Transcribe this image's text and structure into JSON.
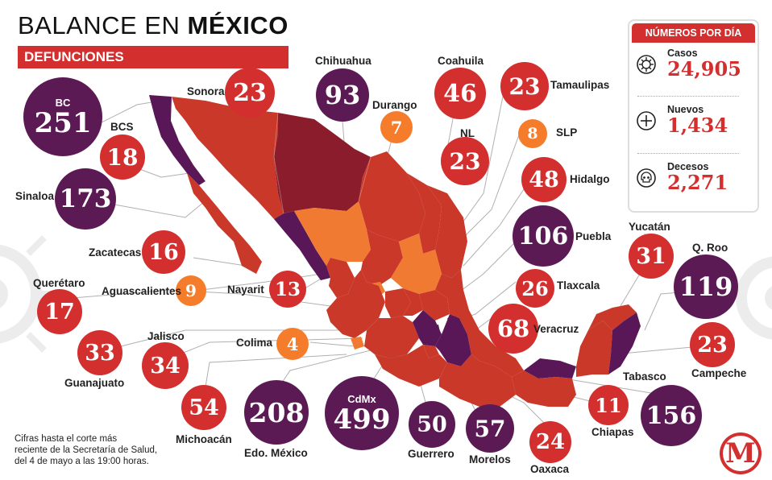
{
  "header": {
    "title_light": "BALANCE EN ",
    "title_bold": "MÉXICO",
    "subtitle": "DEFUNCIONES"
  },
  "colors": {
    "red": "#d32f2f",
    "dark_red": "#b73026",
    "purple": "#5c1a55",
    "orange": "#f57c2a",
    "map_red": "#c93828",
    "map_purple": "#5a1757",
    "map_orange": "#f07a32",
    "map_darkred": "#8a1c2b"
  },
  "states": {
    "bc": {
      "name": "BC",
      "value": "251"
    },
    "bcs": {
      "name": "BCS",
      "value": "18"
    },
    "sonora": {
      "name": "Sonora",
      "value": "23"
    },
    "chihuahua": {
      "name": "Chihuahua",
      "value": "93"
    },
    "coahuila": {
      "name": "Coahuila",
      "value": "46"
    },
    "tamaulipas": {
      "name": "Tamaulipas",
      "value": "23"
    },
    "durango": {
      "name": "Durango",
      "value": "7"
    },
    "nl": {
      "name": "NL",
      "value": "23"
    },
    "slp": {
      "name": "SLP",
      "value": "8"
    },
    "hidalgo": {
      "name": "Hidalgo",
      "value": "48"
    },
    "sinaloa": {
      "name": "Sinaloa",
      "value": "173"
    },
    "puebla": {
      "name": "Puebla",
      "value": "106"
    },
    "zacatecas": {
      "name": "Zacatecas",
      "value": "16"
    },
    "yucatan": {
      "name": "Yucatán",
      "value": "31"
    },
    "qroo": {
      "name": "Q. Roo",
      "value": "119"
    },
    "aguascalientes": {
      "name": "Aguascalientes",
      "value": "9"
    },
    "nayarit": {
      "name": "Nayarit",
      "value": "13"
    },
    "queretaro": {
      "name": "Querétaro",
      "value": "17"
    },
    "tlaxcala": {
      "name": "Tlaxcala",
      "value": "26"
    },
    "veracruz": {
      "name": "Veracruz",
      "value": "68"
    },
    "colima": {
      "name": "Colima",
      "value": "4"
    },
    "jalisco": {
      "name": "Jalisco",
      "value": "34"
    },
    "guanajuato": {
      "name": "Guanajuato",
      "value": "33"
    },
    "campeche": {
      "name": "Campeche",
      "value": "23"
    },
    "tabasco": {
      "name": "Tabasco",
      "value": "156"
    },
    "michoacan": {
      "name": "Michoacán",
      "value": "54"
    },
    "edomex": {
      "name": "Edo. México",
      "value": "208"
    },
    "cdmx": {
      "name": "CdMx",
      "value": "499"
    },
    "guerrero": {
      "name": "Guerrero",
      "value": "50"
    },
    "morelos": {
      "name": "Morelos",
      "value": "57"
    },
    "oaxaca": {
      "name": "Oaxaca",
      "value": "24"
    },
    "chiapas": {
      "name": "Chiapas",
      "value": "11"
    }
  },
  "panel": {
    "header": "NÚMEROS POR DÍA",
    "stats": [
      {
        "name": "Casos",
        "value": "24,905",
        "icon": "virus-icon"
      },
      {
        "name": "Nuevos",
        "value": "1,434",
        "icon": "plus-circle-icon"
      },
      {
        "name": "Decesos",
        "value": "2,271",
        "icon": "skull-icon"
      }
    ]
  },
  "footnote": {
    "line1": "Cifras hasta el corte más",
    "line2": "reciente de la Secretaría de Salud,",
    "line3": "del 4 de mayo a las 19:00 horas."
  },
  "logo": {
    "letter": "M"
  }
}
